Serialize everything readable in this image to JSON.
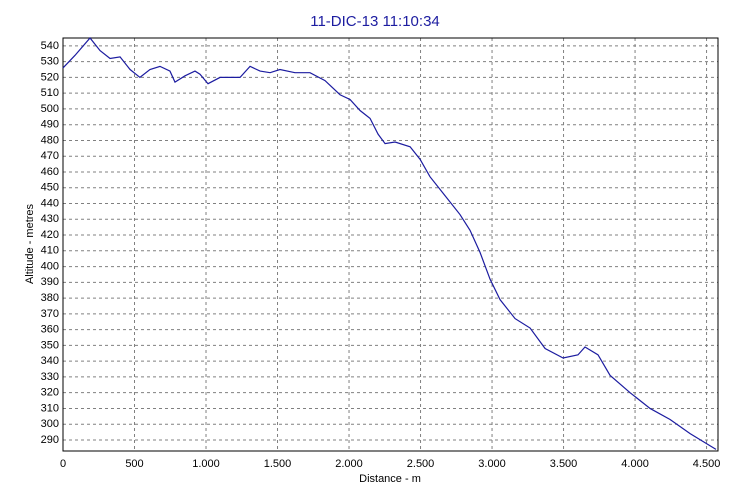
{
  "chart_data": {
    "type": "line",
    "title": "11-DIC-13 11:10:34",
    "x_label": "Distance - m",
    "y_label": "Altitude - metres",
    "x": [
      0,
      84,
      189,
      259,
      329,
      399,
      469,
      538,
      608,
      678,
      748,
      783,
      853,
      923,
      958,
      1014,
      1098,
      1238,
      1308,
      1378,
      1448,
      1517,
      1622,
      1727,
      1832,
      1937,
      2007,
      2077,
      2147,
      2203,
      2252,
      2322,
      2427,
      2497,
      2566,
      2671,
      2776,
      2846,
      2916,
      2986,
      3056,
      3161,
      3266,
      3371,
      3497,
      3601,
      3650,
      3741,
      3825,
      3965,
      4105,
      4245,
      4385,
      4566
    ],
    "series": [
      {
        "name": "Altitude",
        "color": "#1c1ca0",
        "values": [
          526,
          534,
          545,
          537,
          532,
          533,
          525,
          520,
          525,
          527,
          524,
          517,
          521,
          524,
          522,
          516,
          520,
          520,
          527,
          524,
          523,
          525,
          523,
          523,
          518,
          509,
          506,
          499,
          494,
          484,
          478,
          479,
          476,
          468,
          457,
          445,
          433,
          423,
          409,
          392,
          379,
          367,
          361,
          348,
          342,
          344,
          349,
          344,
          331,
          320,
          310,
          303,
          294,
          284
        ]
      }
    ],
    "xlim": [
      0,
      4580
    ],
    "ylim": [
      283,
      545
    ],
    "xticks": [
      0,
      500,
      {
        "value": 1000,
        "label": "1.000"
      },
      {
        "value": 1500,
        "label": "1.500"
      },
      {
        "value": 2000,
        "label": "2.000"
      },
      {
        "value": 2500,
        "label": "2.500"
      },
      {
        "value": 3000,
        "label": "3.000"
      },
      {
        "value": 3500,
        "label": "3.500"
      },
      {
        "value": 4000,
        "label": "4.000"
      },
      {
        "value": 4500,
        "label": "4.500"
      }
    ],
    "yticks": [
      290,
      300,
      310,
      320,
      330,
      340,
      350,
      360,
      370,
      380,
      390,
      400,
      410,
      420,
      430,
      440,
      450,
      460,
      470,
      480,
      490,
      500,
      510,
      520,
      530,
      540
    ],
    "grid": true
  }
}
